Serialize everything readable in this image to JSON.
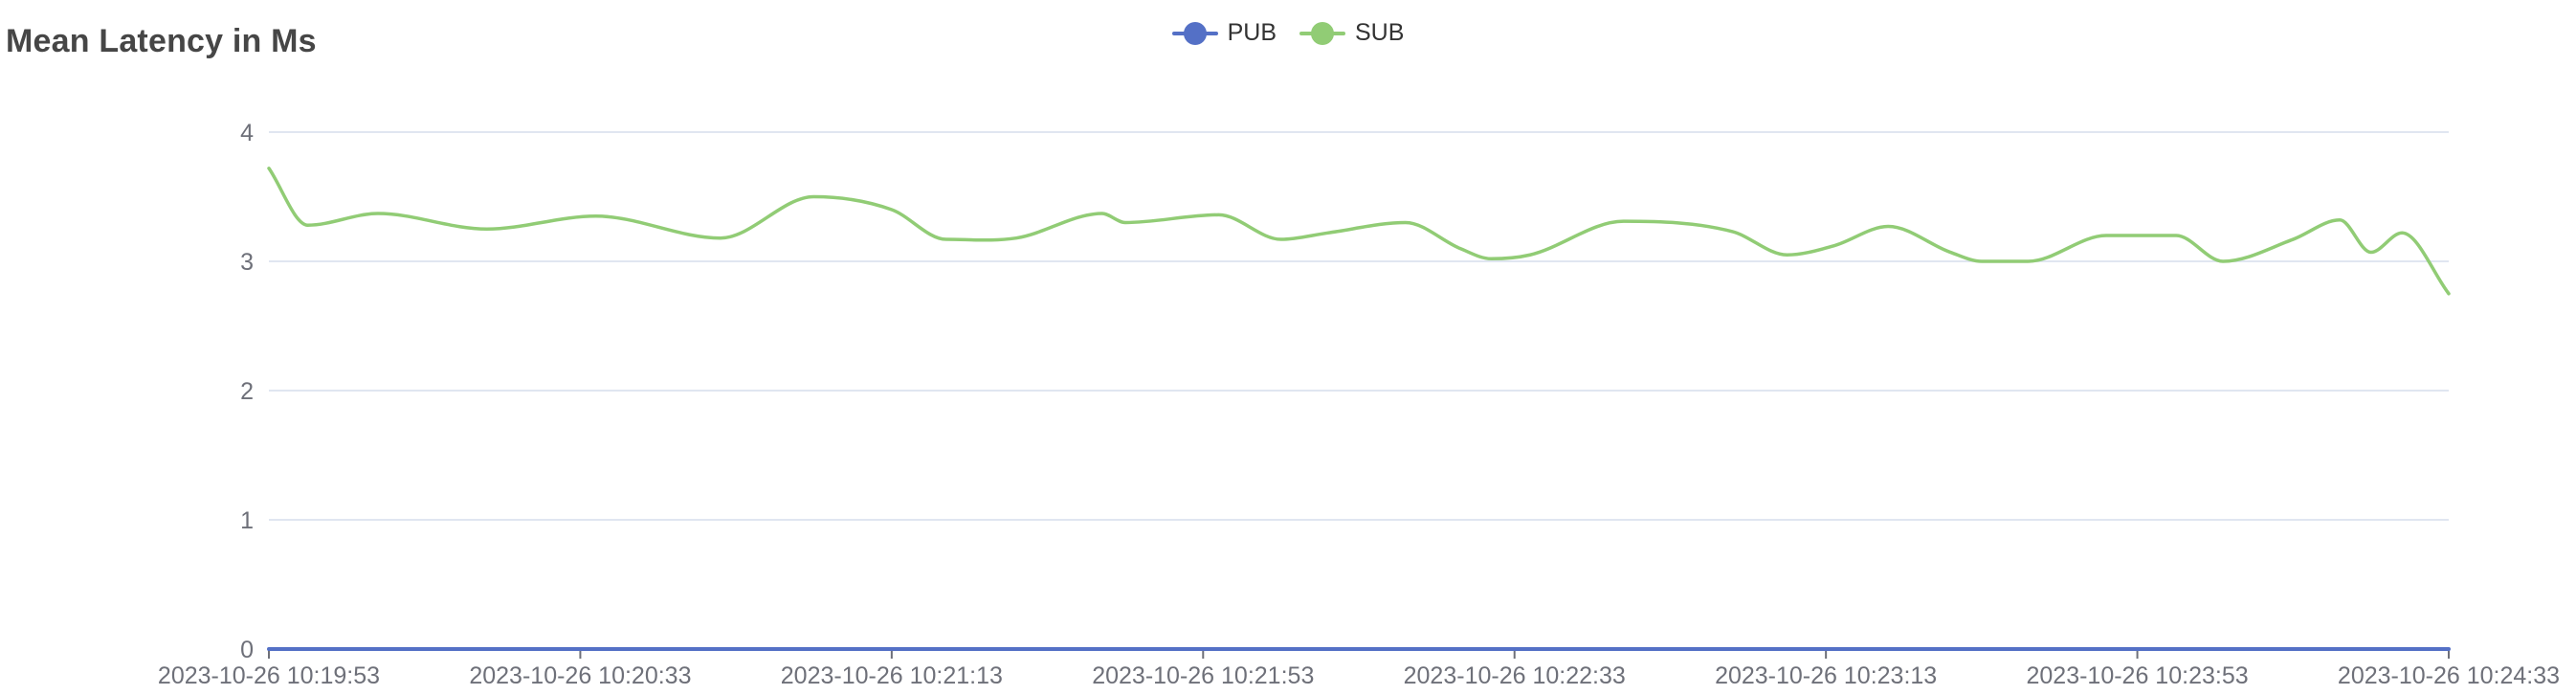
{
  "chart_data": {
    "type": "line",
    "title": "Mean Latency in Ms",
    "xlabel": "",
    "ylabel": "",
    "ylim": [
      0,
      4
    ],
    "yticks": [
      0,
      1,
      2,
      3,
      4
    ],
    "x_tick_labels": [
      "2023-10-26 10:19:53",
      "2023-10-26 10:20:33",
      "2023-10-26 10:21:13",
      "2023-10-26 10:21:53",
      "2023-10-26 10:22:33",
      "2023-10-26 10:23:13",
      "2023-10-26 10:23:53",
      "2023-10-26 10:24:33"
    ],
    "x_range_seconds": [
      0,
      280
    ],
    "grid": "horizontal",
    "smooth": true,
    "legend_position": "top-center",
    "series": [
      {
        "name": "PUB",
        "color": "#5470c6",
        "x": [
          0,
          280
        ],
        "values": [
          0,
          0
        ]
      },
      {
        "name": "SUB",
        "color": "#91cc75",
        "x": [
          0,
          5,
          14,
          28,
          42,
          58,
          70,
          80,
          87,
          96,
          107,
          110,
          122,
          130,
          136,
          146,
          153,
          157,
          162,
          174,
          188,
          195,
          201,
          208,
          216,
          220,
          226,
          236,
          245,
          251,
          260,
          266,
          270,
          274,
          280
        ],
        "values": [
          3.72,
          3.28,
          3.37,
          3.25,
          3.35,
          3.18,
          3.5,
          3.4,
          3.17,
          3.18,
          3.37,
          3.3,
          3.36,
          3.17,
          3.22,
          3.3,
          3.1,
          3.02,
          3.05,
          3.31,
          3.23,
          3.05,
          3.12,
          3.27,
          3.07,
          3.0,
          3.0,
          3.2,
          3.2,
          3.0,
          3.17,
          3.32,
          3.07,
          3.22,
          2.75
        ]
      }
    ]
  }
}
